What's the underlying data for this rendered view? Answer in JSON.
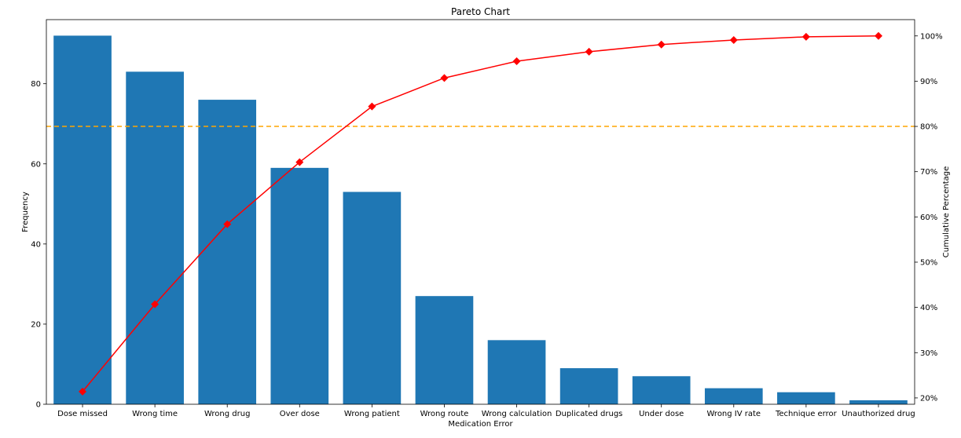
{
  "chart_data": {
    "type": "bar",
    "title": "Pareto Chart",
    "xlabel": "Medication Error",
    "ylabel": "Frequency",
    "y2label": "Cumulative Percentage",
    "categories": [
      "Dose missed",
      "Wrong time",
      "Wrong drug",
      "Over dose",
      "Wrong patient",
      "Wrong route",
      "Wrong calculation",
      "Duplicated drugs",
      "Under dose",
      "Wrong IV rate",
      "Technique error",
      "Unauthorized drug"
    ],
    "series": [
      {
        "values": [
          92,
          83,
          76,
          59,
          53,
          27,
          16,
          9,
          7,
          4,
          3,
          1
        ],
        "color": "#1f77b4",
        "kind": "bar"
      },
      {
        "values": [
          21.4,
          40.7,
          58.4,
          72.1,
          84.4,
          90.7,
          94.4,
          96.5,
          98.1,
          99.1,
          99.8,
          100.0
        ],
        "color": "#ff0000",
        "kind": "line",
        "marker": "diamond",
        "axis": "right"
      }
    ],
    "threshold": {
      "y2": 80,
      "color": "#ffa500",
      "style": "dashed"
    },
    "ylim": [
      0,
      96
    ],
    "y2lim": [
      18.6,
      103.6
    ],
    "yticks": [
      0,
      20,
      40,
      60,
      80
    ],
    "y2ticks": [
      20,
      30,
      40,
      50,
      60,
      70,
      80,
      90,
      100
    ],
    "y2tick_labels": [
      "20%",
      "30%",
      "40%",
      "50%",
      "60%",
      "70%",
      "80%",
      "90%",
      "100%"
    ],
    "grid": false,
    "legend": "none"
  }
}
